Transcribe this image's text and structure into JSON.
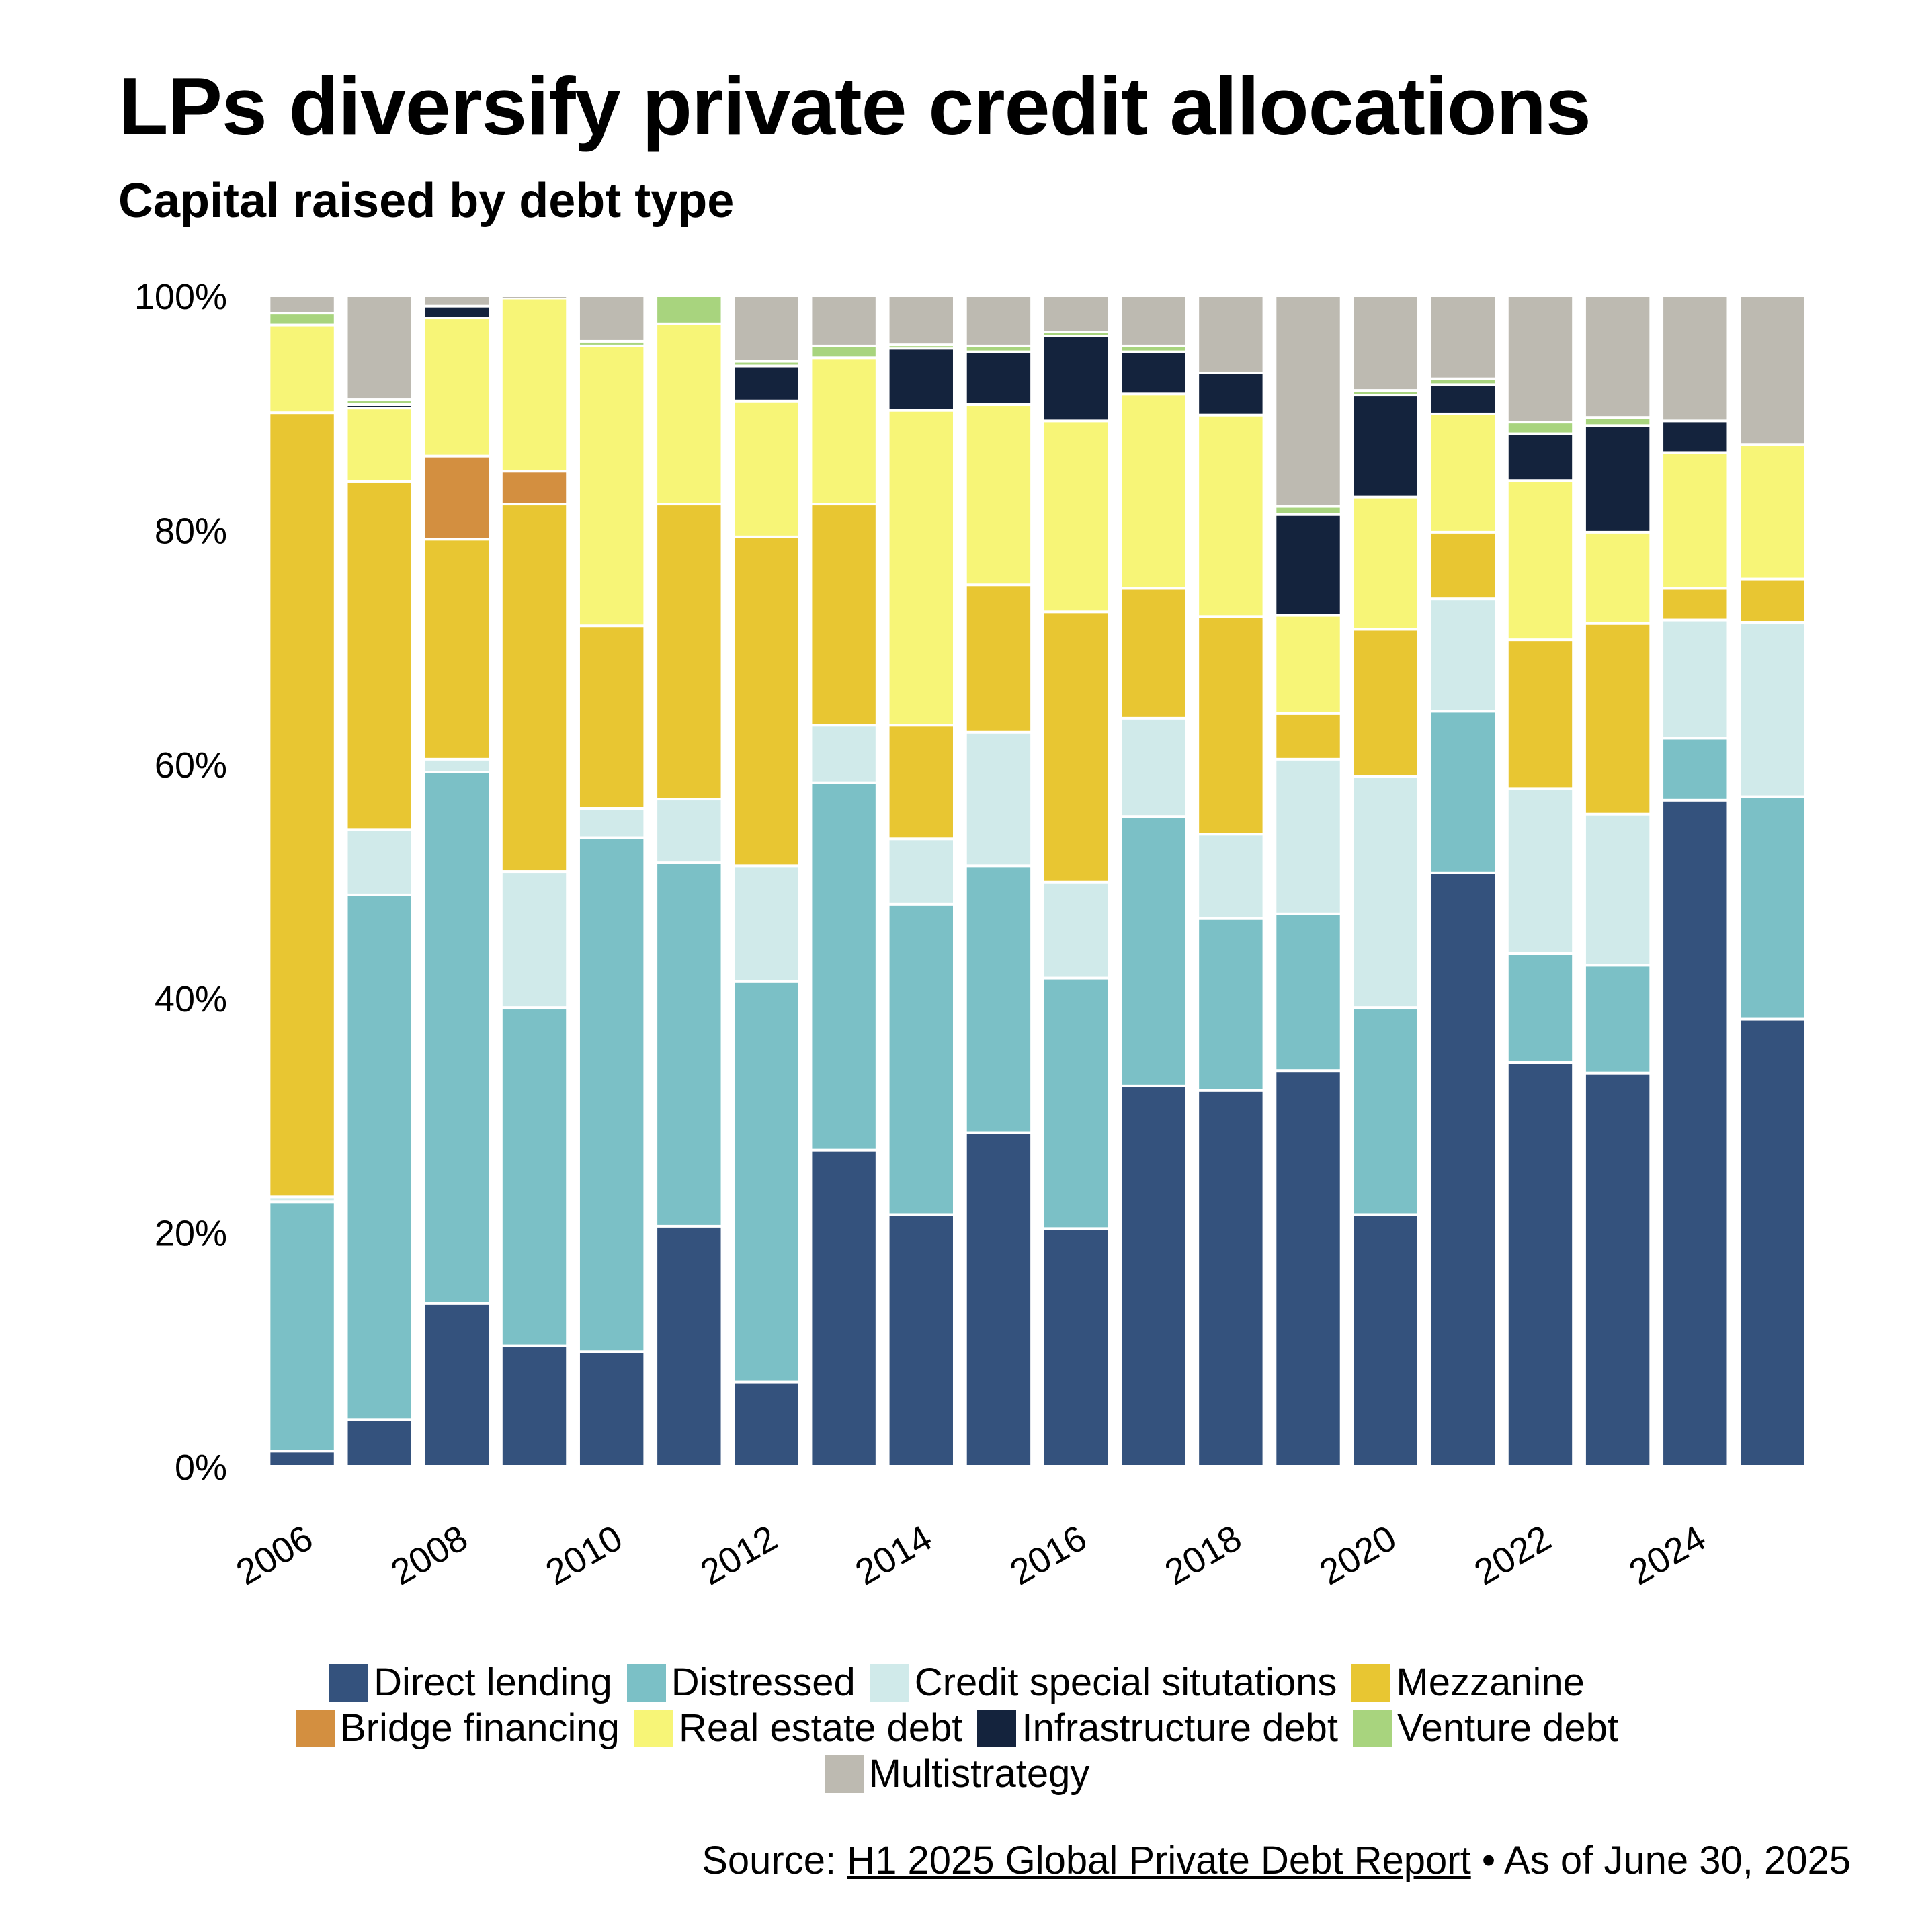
{
  "title": "LPs diversify private credit allocations",
  "subtitle": "Capital raised by debt type",
  "source": {
    "prefix": "Source: ",
    "link_text": "H1 2025 Global Private Debt Report",
    "suffix": " • As of June 30, 2025"
  },
  "chart_data": {
    "type": "bar",
    "stacked": true,
    "normalized": true,
    "title": "LPs diversify private credit allocations",
    "subtitle": "Capital raised by debt type",
    "xlabel": "",
    "ylabel": "",
    "ylim": [
      0,
      100
    ],
    "yticks": [
      "0%",
      "20%",
      "40%",
      "60%",
      "80%",
      "100%"
    ],
    "ytick_values": [
      0,
      20,
      40,
      60,
      80,
      100
    ],
    "categories": [
      "2006",
      "2007",
      "2008",
      "2009",
      "2010",
      "2011",
      "2012",
      "2013",
      "2014",
      "2015",
      "2016",
      "2017",
      "2018",
      "2019",
      "2020",
      "2021",
      "2022",
      "2023",
      "2024",
      "2025"
    ],
    "xtick_labels": [
      "2006",
      "2008",
      "2010",
      "2012",
      "2014",
      "2016",
      "2018",
      "2020",
      "2022",
      "2024"
    ],
    "grid": false,
    "legend_position": "bottom",
    "series": [
      {
        "name": "Direct lending",
        "color": "#34527d",
        "values": [
          1.3,
          4.0,
          13.9,
          10.3,
          9.8,
          20.5,
          7.2,
          27.0,
          21.5,
          28.5,
          20.3,
          32.5,
          32.1,
          33.8,
          21.5,
          50.7,
          34.5,
          33.6,
          56.9,
          38.2
        ]
      },
      {
        "name": "Distressed",
        "color": "#7bc0c6",
        "values": [
          21.3,
          44.8,
          45.4,
          28.9,
          43.9,
          31.1,
          34.2,
          31.4,
          26.5,
          22.8,
          21.4,
          23.0,
          14.7,
          13.4,
          17.7,
          13.8,
          9.3,
          9.2,
          5.3,
          19.0
        ]
      },
      {
        "name": "Credit special situtations",
        "color": "#d0eaea",
        "values": [
          0.4,
          5.6,
          1.1,
          11.6,
          2.5,
          5.4,
          9.9,
          4.9,
          5.6,
          11.4,
          8.2,
          8.4,
          7.2,
          13.2,
          19.7,
          9.6,
          14.1,
          12.9,
          10.1,
          14.9
        ]
      },
      {
        "name": "Mezzanine",
        "color": "#e8c632",
        "values": [
          67.0,
          29.7,
          18.8,
          31.4,
          15.6,
          25.2,
          28.1,
          18.9,
          9.7,
          12.6,
          23.1,
          11.1,
          18.6,
          3.9,
          12.6,
          5.7,
          12.7,
          16.3,
          2.7,
          3.7
        ]
      },
      {
        "name": "Bridge financing",
        "color": "#d38f40",
        "values": [
          0,
          0,
          7.1,
          2.8,
          0,
          0,
          0,
          0,
          0,
          0,
          0,
          0,
          0,
          0,
          0,
          0,
          0,
          0,
          0,
          0
        ]
      },
      {
        "name": "Real estate debt",
        "color": "#f7f577",
        "values": [
          7.5,
          6.3,
          11.8,
          14.8,
          23.9,
          15.4,
          11.6,
          12.5,
          26.9,
          15.4,
          16.3,
          16.6,
          17.2,
          8.4,
          11.3,
          10.1,
          13.6,
          7.8,
          11.6,
          11.5
        ]
      },
      {
        "name": "Infrastructure debt",
        "color": "#14233d",
        "values": [
          0,
          0.3,
          1.0,
          0,
          0,
          0,
          3.0,
          0,
          5.3,
          4.5,
          7.3,
          3.6,
          3.6,
          8.6,
          8.7,
          2.5,
          4.0,
          9.1,
          2.7,
          0
        ]
      },
      {
        "name": "Venture debt",
        "color": "#a8d47e",
        "values": [
          1.0,
          0.4,
          0,
          0,
          0.4,
          2.4,
          0.4,
          1.0,
          0.3,
          0.5,
          0.3,
          0.5,
          0,
          0.7,
          0.4,
          0.5,
          1.0,
          0.7,
          0,
          0
        ]
      },
      {
        "name": "Multistrategy",
        "color": "#bdbab1",
        "values": [
          1.5,
          8.9,
          0.9,
          0.2,
          3.9,
          0,
          5.6,
          4.3,
          4.2,
          4.3,
          3.1,
          4.3,
          6.6,
          18.0,
          8.1,
          7.1,
          10.8,
          10.4,
          10.7,
          12.7
        ]
      }
    ]
  }
}
